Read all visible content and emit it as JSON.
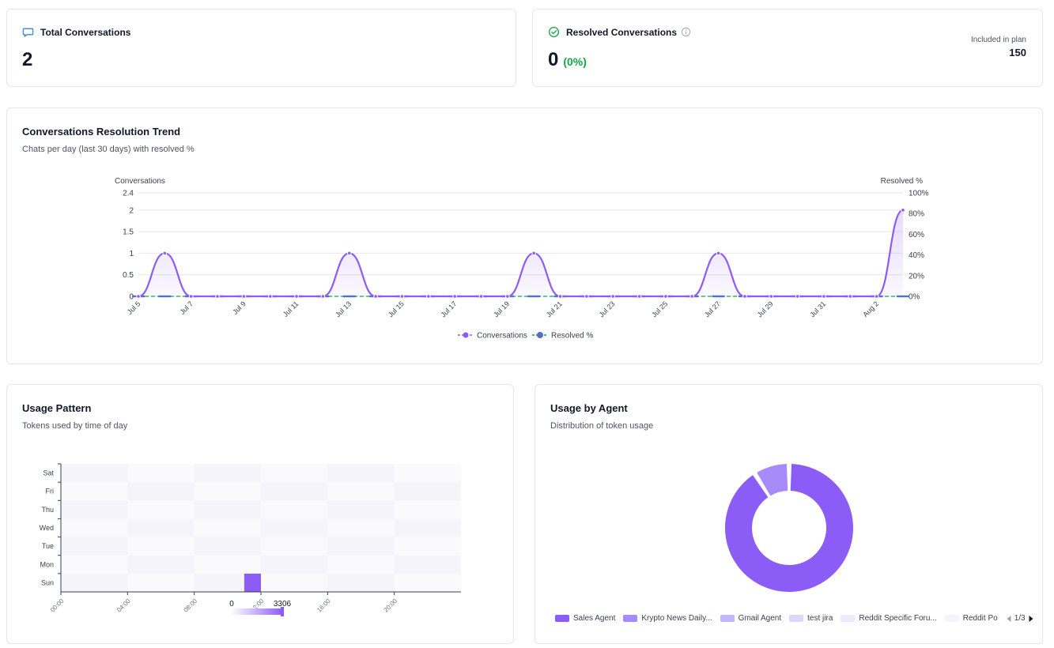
{
  "total": {
    "label": "Total Conversations",
    "value": "2",
    "icon": "chat-bubble-icon"
  },
  "resolved": {
    "label": "Resolved Conversations",
    "value": "0",
    "percent": "(0%)",
    "icon": "check-circle-icon",
    "info_icon": "info-icon",
    "plan_label": "Included in plan",
    "plan_value": "150"
  },
  "trend": {
    "title": "Conversations Resolution Trend",
    "subtitle": "Chats per day (last 30 days) with resolved %"
  },
  "usage": {
    "title": "Usage Pattern",
    "subtitle": "Tokens used by time of day"
  },
  "agent": {
    "title": "Usage by Agent",
    "subtitle": "Distribution of token usage",
    "page": "1/3"
  },
  "colors": {
    "purple": "#8b5cf6",
    "green": "#16a34a",
    "blue": "#4f72c9",
    "border": "#e5e7eb"
  },
  "chart_data": [
    {
      "type": "line",
      "ylabel": "Conversations",
      "y2label": "Resolved %",
      "ylim": [
        0,
        2.4
      ],
      "y2lim": [
        0,
        100
      ],
      "y_ticks": [
        "0",
        "0.5",
        "1",
        "1.5",
        "2",
        "2.4"
      ],
      "y2_ticks": [
        "0%",
        "20%",
        "40%",
        "60%",
        "80%",
        "100%"
      ],
      "x": [
        "Jul 5",
        "Jul 6",
        "Jul 7",
        "Jul 8",
        "Jul 9",
        "Jul 10",
        "Jul 11",
        "Jul 12",
        "Jul 13",
        "Jul 14",
        "Jul 15",
        "Jul 16",
        "Jul 17",
        "Jul 18",
        "Jul 19",
        "Jul 20",
        "Jul 21",
        "Jul 22",
        "Jul 23",
        "Jul 24",
        "Jul 25",
        "Jul 26",
        "Jul 27",
        "Jul 28",
        "Jul 29",
        "Jul 30",
        "Jul 31",
        "Aug 1",
        "Aug 2",
        "Aug 3"
      ],
      "x_tick_labels": [
        "Jul 5",
        "Jul 7",
        "Jul 9",
        "Jul 11",
        "Jul 13",
        "Jul 15",
        "Jul 17",
        "Jul 19",
        "Jul 21",
        "Jul 23",
        "Jul 25",
        "Jul 27",
        "Jul 29",
        "Jul 31",
        "Aug 2"
      ],
      "series": [
        {
          "name": "Conversations",
          "axis": "left",
          "values": [
            0,
            1,
            0,
            0,
            0,
            0,
            0,
            0,
            1,
            0,
            0,
            0,
            0,
            0,
            0,
            1,
            0,
            0,
            0,
            0,
            0,
            0,
            1,
            0,
            0,
            0,
            0,
            0,
            0,
            2
          ]
        },
        {
          "name": "Resolved %",
          "axis": "right",
          "values": [
            0,
            0,
            0,
            0,
            0,
            0,
            0,
            0,
            0,
            0,
            0,
            0,
            0,
            0,
            0,
            0,
            0,
            0,
            0,
            0,
            0,
            0,
            0,
            0,
            0,
            0,
            0,
            0,
            0,
            0
          ]
        }
      ],
      "legend": "bottom-center"
    },
    {
      "type": "heatmap",
      "x_tick_labels": [
        "00:00",
        "04:00",
        "08:00",
        "12:00",
        "16:00",
        "20:00"
      ],
      "y_categories": [
        "Sun",
        "Mon",
        "Tue",
        "Wed",
        "Thu",
        "Fri",
        "Sat"
      ],
      "cells": [
        {
          "day": "Sun",
          "hour": 11,
          "value": 3306
        }
      ],
      "scale_min": "0",
      "scale_max": "3306"
    },
    {
      "type": "pie",
      "donut": true,
      "legend": "bottom",
      "slices": [
        {
          "label": "Sales Agent",
          "value": 91,
          "color": "#8b5cf6"
        },
        {
          "label": "Krypto News Daily...",
          "value": 9,
          "color": "#a78bfa"
        },
        {
          "label": "Gmail Agent",
          "value": 0,
          "color": "#c4b5fd"
        },
        {
          "label": "test jira",
          "value": 0,
          "color": "#ddd6fe"
        },
        {
          "label": "Reddit Specific Foru...",
          "value": 0,
          "color": "#ede9fe"
        },
        {
          "label": "Reddit Po",
          "value": 0,
          "color": "#f5f3ff"
        }
      ]
    }
  ]
}
